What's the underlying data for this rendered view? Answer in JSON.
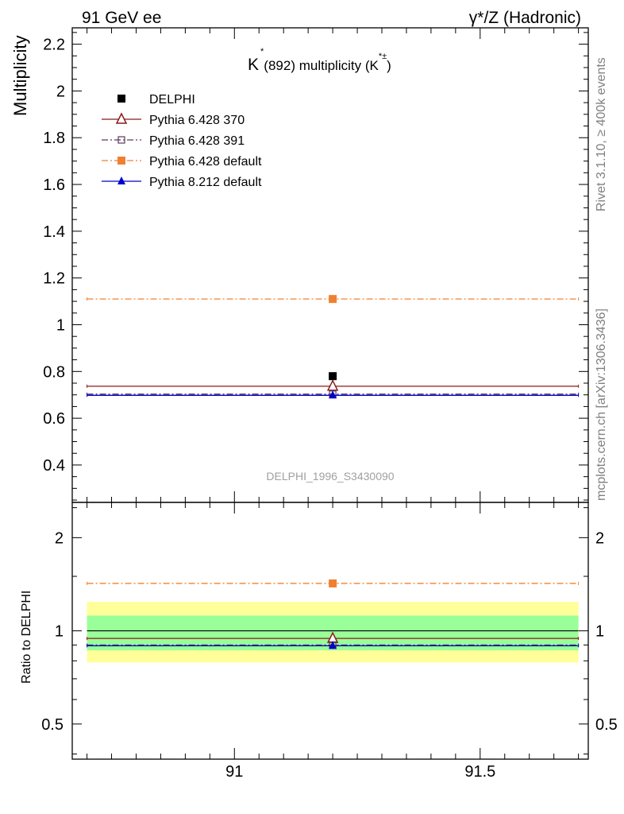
{
  "header": {
    "left": "91 GeV ee",
    "right": "γ*/Z (Hadronic)"
  },
  "side_labels": {
    "rivet": "Rivet 3.1.10, ≥ 400k events",
    "mcplots": "mcplots.cern.ch [arXiv:1306.3436]"
  },
  "chart_data": {
    "type": "scatter",
    "title": "K*(892) multiplicity (K*±)",
    "title_parts": {
      "k": "K",
      "star": "*",
      "mid": "(892) multiplicity (K",
      "sup": "*±",
      "close": ")"
    },
    "watermark": "DELPHI_1996_S3430090",
    "x": [
      91.2
    ],
    "xlim": [
      90.67,
      91.72
    ],
    "xbin": [
      90.7,
      91.7
    ],
    "xticks": [
      91,
      91.5
    ],
    "xtick_labels": [
      "91",
      "91.5"
    ],
    "main": {
      "ylabel": "Multiplicity",
      "ylim": [
        0.24,
        2.27
      ],
      "yticks": [
        0.4,
        0.6,
        0.8,
        1,
        1.2,
        1.4,
        1.6,
        1.8,
        2,
        2.2
      ],
      "ytick_labels": [
        "0.4",
        "0.6",
        "0.8",
        "1",
        "1.2",
        "1.4",
        "1.6",
        "1.8",
        "2",
        "2.2"
      ]
    },
    "ratio": {
      "ylabel": "Ratio to DELPHI",
      "ylim": [
        0.385,
        2.6
      ],
      "yticks": [
        0.5,
        1,
        2
      ],
      "ytick_labels": [
        "0.5",
        "1",
        "2"
      ],
      "band_inner": [
        0.865,
        1.12
      ],
      "band_outer": [
        0.79,
        1.24
      ]
    },
    "series": [
      {
        "name": "DELPHI",
        "key": "delphi",
        "value": 0.78,
        "ratio": 1.0,
        "color": "#000000",
        "marker": "square",
        "line": "none"
      },
      {
        "name": "Pythia 6.428 370",
        "key": "p370",
        "value": 0.737,
        "ratio": 0.945,
        "color": "#8b1a1a",
        "marker": "open-triangle",
        "line": "solid"
      },
      {
        "name": "Pythia 6.428 391",
        "key": "p391",
        "value": 0.703,
        "ratio": 0.9,
        "color": "#5a3a5a",
        "marker": "open-square",
        "line": "dashdot"
      },
      {
        "name": "Pythia 6.428 default",
        "key": "p6def",
        "value": 1.11,
        "ratio": 1.423,
        "color": "#f08030",
        "marker": "square",
        "line": "dashdot"
      },
      {
        "name": "Pythia 8.212 default",
        "key": "p8def",
        "value": 0.698,
        "ratio": 0.895,
        "color": "#0000cc",
        "marker": "triangle",
        "line": "solid"
      }
    ]
  }
}
